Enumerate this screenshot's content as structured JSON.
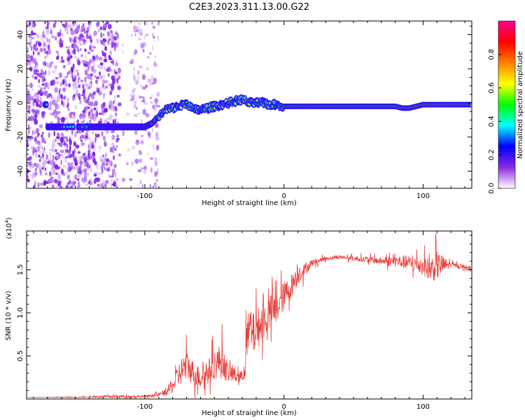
{
  "chart_data": [
    {
      "type": "heatmap",
      "title": "C2E3.2023.311.13.00.G22",
      "xlabel": "Height of straight line (km)",
      "ylabel": "Frequency (Hz)",
      "xlim": [
        -185,
        135
      ],
      "ylim": [
        -50,
        48
      ],
      "x_ticks": [
        -100,
        0,
        100
      ],
      "y_ticks": [
        -40,
        -20,
        0,
        20,
        40
      ],
      "grid": false,
      "colorbar": {
        "label": "Normalized spectral amplitude",
        "range": [
          0,
          1
        ],
        "ticks": [
          0.0,
          0.2,
          0.4,
          0.6,
          0.8
        ],
        "colormap": [
          "#ffffff",
          "#8a2be2",
          "#0000ff",
          "#00ffff",
          "#00ff00",
          "#ffff00",
          "#ff8000",
          "#ff0000",
          "#ff0090"
        ]
      },
      "ridge": {
        "description": "dominant frequency track vs height",
        "x": [
          -170,
          -150,
          -130,
          -110,
          -100,
          -95,
          -90,
          -85,
          -80,
          -75,
          -70,
          -65,
          -60,
          -55,
          -50,
          -45,
          -40,
          -35,
          -30,
          -25,
          -20,
          -15,
          -10,
          -5,
          0,
          20,
          40,
          60,
          80,
          85,
          90,
          100,
          110,
          120,
          135
        ],
        "y": [
          -14,
          -14,
          -14,
          -14,
          -14,
          -12,
          -8,
          -4,
          -3,
          -2,
          0,
          -4,
          -4,
          -3,
          -2,
          -1,
          0,
          1,
          2,
          0,
          0,
          0,
          -1,
          -1,
          -2,
          -2,
          -2,
          -2,
          -2,
          -3,
          -3,
          -1,
          -1,
          -1,
          -1
        ]
      },
      "noise_region_x": [
        -185,
        -90
      ]
    },
    {
      "type": "line",
      "title": "",
      "xlabel": "Height of straight line (km)",
      "ylabel": "SNR (10 * v/v)",
      "multiplier_label": "(x10",
      "multiplier_exp": "4",
      "multiplier_close": ")",
      "xlim": [
        -185,
        135
      ],
      "ylim": [
        0,
        1.95
      ],
      "x_ticks": [
        -100,
        0,
        100
      ],
      "y_ticks": [
        0.5,
        1.0,
        1.5
      ],
      "series": [
        {
          "color": "#e8403a",
          "x": [
            -185,
            -150,
            -120,
            -100,
            -90,
            -85,
            -80,
            -75,
            -70,
            -65,
            -60,
            -55,
            -50,
            -45,
            -40,
            -35,
            -30,
            -28,
            -25,
            -22,
            -20,
            -15,
            -10,
            -5,
            0,
            5,
            10,
            15,
            20,
            30,
            40,
            50,
            60,
            70,
            80,
            90,
            100,
            105,
            110,
            120,
            135
          ],
          "y": [
            0.02,
            0.02,
            0.03,
            0.03,
            0.05,
            0.08,
            0.15,
            0.3,
            0.4,
            0.3,
            0.25,
            0.3,
            0.4,
            0.45,
            0.3,
            0.28,
            0.25,
            0.5,
            0.8,
            0.75,
            0.8,
            0.9,
            1.0,
            1.05,
            1.2,
            1.3,
            1.45,
            1.5,
            1.58,
            1.63,
            1.65,
            1.63,
            1.62,
            1.6,
            1.6,
            1.58,
            1.55,
            1.5,
            1.55,
            1.56,
            1.52
          ],
          "noise_amp": [
            0.0,
            0.01,
            0.02,
            0.02,
            0.03,
            0.05,
            0.12,
            0.22,
            0.25,
            0.2,
            0.18,
            0.2,
            0.25,
            0.3,
            0.15,
            0.15,
            0.1,
            0.4,
            0.4,
            0.35,
            0.35,
            0.3,
            0.3,
            0.25,
            0.25,
            0.2,
            0.18,
            0.1,
            0.06,
            0.03,
            0.03,
            0.04,
            0.05,
            0.06,
            0.1,
            0.12,
            0.15,
            0.2,
            0.25,
            0.04,
            0.03
          ]
        }
      ],
      "grid": false
    }
  ]
}
